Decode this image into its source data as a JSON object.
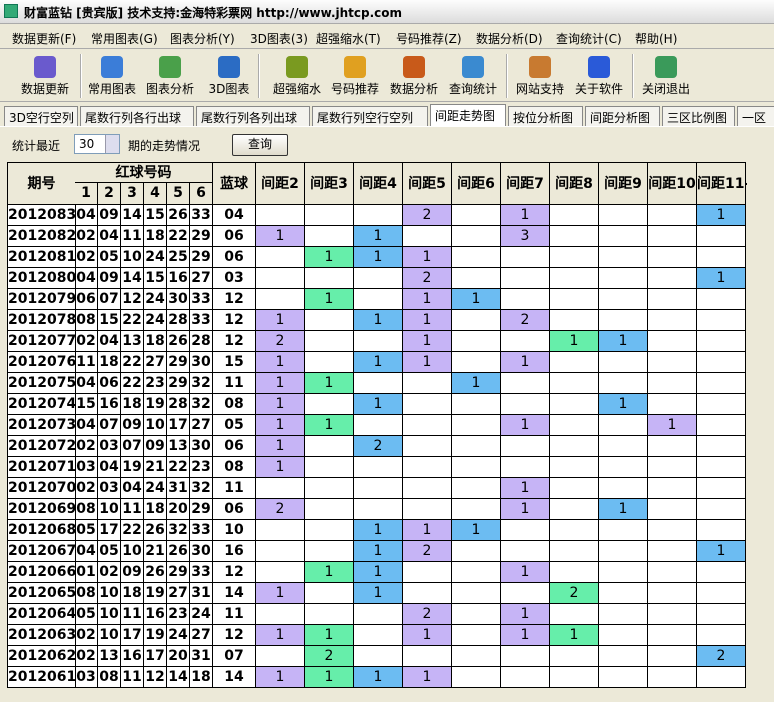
{
  "window": {
    "title": "财富蓝钻 [贵宾版] 技术支持:金海特彩票网 http://www.jhtcp.com"
  },
  "menu": [
    "数据更新(F)",
    "常用图表(G)",
    "图表分析(Y)",
    "3D图表(3)",
    "超强缩水(T)",
    "号码推荐(Z)",
    "数据分析(D)",
    "查询统计(C)",
    "帮助(H)"
  ],
  "toolbar": [
    "数据更新",
    "常用图表",
    "图表分析",
    "3D图表",
    "超强缩水",
    "号码推荐",
    "数据分析",
    "查询统计",
    "网站支持",
    "关于软件",
    "关闭退出"
  ],
  "tabs": [
    "3D空行空列",
    "尾数行列各行出球",
    "尾数行列各列出球",
    "尾数行列空行空列",
    "间距走势图",
    "按位分析图",
    "间距分析图",
    "三区比例图",
    "一区"
  ],
  "active_tab": 4,
  "filter": {
    "label_before": "统计最近",
    "count": 30,
    "label_after": "期的走势情况",
    "button": "查询"
  },
  "table": {
    "headers": {
      "issue": "期号",
      "red": "红球号码",
      "red_positions": [
        1,
        2,
        3,
        4,
        5,
        6
      ],
      "blue": "蓝球",
      "gaps": [
        "间距2",
        "间距3",
        "间距4",
        "间距5",
        "间距6",
        "间距7",
        "间距8",
        "间距9",
        "间距10",
        "间距11-"
      ]
    },
    "gap_colors": [
      "#c6b4f6",
      "#66eeaa",
      "#6cbcf2",
      "#c6b4f6",
      "#6cbcf2",
      "#c6b4f6",
      "#66eeaa",
      "#6cbcf2",
      "#c6b4f6",
      "#6cbcf2"
    ],
    "rows": [
      {
        "issue": "2012083",
        "red": [
          "04",
          "09",
          "14",
          "15",
          "26",
          "33"
        ],
        "blue": "04",
        "gaps": [
          null,
          null,
          null,
          2,
          null,
          1,
          null,
          null,
          null,
          1
        ]
      },
      {
        "issue": "2012082",
        "red": [
          "02",
          "04",
          "11",
          "18",
          "22",
          "29"
        ],
        "blue": "06",
        "gaps": [
          1,
          null,
          1,
          null,
          null,
          3,
          null,
          null,
          null,
          null
        ]
      },
      {
        "issue": "2012081",
        "red": [
          "02",
          "05",
          "10",
          "24",
          "25",
          "29"
        ],
        "blue": "06",
        "gaps": [
          null,
          1,
          1,
          1,
          null,
          null,
          null,
          null,
          null,
          null
        ]
      },
      {
        "issue": "2012080",
        "red": [
          "04",
          "09",
          "14",
          "15",
          "16",
          "27"
        ],
        "blue": "03",
        "gaps": [
          null,
          null,
          null,
          2,
          null,
          null,
          null,
          null,
          null,
          1
        ]
      },
      {
        "issue": "2012079",
        "red": [
          "06",
          "07",
          "12",
          "24",
          "30",
          "33"
        ],
        "blue": "12",
        "gaps": [
          null,
          1,
          null,
          1,
          1,
          null,
          null,
          null,
          null,
          null
        ]
      },
      {
        "issue": "2012078",
        "red": [
          "08",
          "15",
          "22",
          "24",
          "28",
          "33"
        ],
        "blue": "12",
        "gaps": [
          1,
          null,
          1,
          1,
          null,
          2,
          null,
          null,
          null,
          null
        ]
      },
      {
        "issue": "2012077",
        "red": [
          "02",
          "04",
          "13",
          "18",
          "26",
          "28"
        ],
        "blue": "12",
        "gaps": [
          2,
          null,
          null,
          1,
          null,
          null,
          1,
          1,
          null,
          null
        ]
      },
      {
        "issue": "2012076",
        "red": [
          "11",
          "18",
          "22",
          "27",
          "29",
          "30"
        ],
        "blue": "15",
        "gaps": [
          1,
          null,
          1,
          1,
          null,
          1,
          null,
          null,
          null,
          null
        ]
      },
      {
        "issue": "2012075",
        "red": [
          "04",
          "06",
          "22",
          "23",
          "29",
          "32"
        ],
        "blue": "11",
        "gaps": [
          1,
          1,
          null,
          null,
          1,
          null,
          null,
          null,
          null,
          null
        ]
      },
      {
        "issue": "2012074",
        "red": [
          "15",
          "16",
          "18",
          "19",
          "28",
          "32"
        ],
        "blue": "08",
        "gaps": [
          1,
          null,
          1,
          null,
          null,
          null,
          null,
          1,
          null,
          null
        ]
      },
      {
        "issue": "2012073",
        "red": [
          "04",
          "07",
          "09",
          "10",
          "17",
          "27"
        ],
        "blue": "05",
        "gaps": [
          1,
          1,
          null,
          null,
          null,
          1,
          null,
          null,
          1,
          null
        ]
      },
      {
        "issue": "2012072",
        "red": [
          "02",
          "03",
          "07",
          "09",
          "13",
          "30"
        ],
        "blue": "06",
        "gaps": [
          1,
          null,
          2,
          null,
          null,
          null,
          null,
          null,
          null,
          null
        ]
      },
      {
        "issue": "2012071",
        "red": [
          "03",
          "04",
          "19",
          "21",
          "22",
          "23"
        ],
        "blue": "08",
        "gaps": [
          1,
          null,
          null,
          null,
          null,
          null,
          null,
          null,
          null,
          null
        ]
      },
      {
        "issue": "2012070",
        "red": [
          "02",
          "03",
          "04",
          "24",
          "31",
          "32"
        ],
        "blue": "11",
        "gaps": [
          null,
          null,
          null,
          null,
          null,
          1,
          null,
          null,
          null,
          null
        ]
      },
      {
        "issue": "2012069",
        "red": [
          "08",
          "10",
          "11",
          "18",
          "20",
          "29"
        ],
        "blue": "06",
        "gaps": [
          2,
          null,
          null,
          null,
          null,
          1,
          null,
          1,
          null,
          null
        ]
      },
      {
        "issue": "2012068",
        "red": [
          "05",
          "17",
          "22",
          "26",
          "32",
          "33"
        ],
        "blue": "10",
        "gaps": [
          null,
          null,
          1,
          1,
          1,
          null,
          null,
          null,
          null,
          null
        ]
      },
      {
        "issue": "2012067",
        "red": [
          "04",
          "05",
          "10",
          "21",
          "26",
          "30"
        ],
        "blue": "16",
        "gaps": [
          null,
          null,
          1,
          2,
          null,
          null,
          null,
          null,
          null,
          1
        ]
      },
      {
        "issue": "2012066",
        "red": [
          "01",
          "02",
          "09",
          "26",
          "29",
          "33"
        ],
        "blue": "12",
        "gaps": [
          null,
          1,
          1,
          null,
          null,
          1,
          null,
          null,
          null,
          null
        ]
      },
      {
        "issue": "2012065",
        "red": [
          "08",
          "10",
          "18",
          "19",
          "27",
          "31"
        ],
        "blue": "14",
        "gaps": [
          1,
          null,
          1,
          null,
          null,
          null,
          2,
          null,
          null,
          null
        ]
      },
      {
        "issue": "2012064",
        "red": [
          "05",
          "10",
          "11",
          "16",
          "23",
          "24"
        ],
        "blue": "11",
        "gaps": [
          null,
          null,
          null,
          2,
          null,
          1,
          null,
          null,
          null,
          null
        ]
      },
      {
        "issue": "2012063",
        "red": [
          "02",
          "10",
          "17",
          "19",
          "24",
          "27"
        ],
        "blue": "12",
        "gaps": [
          1,
          1,
          null,
          1,
          null,
          1,
          1,
          null,
          null,
          null
        ]
      },
      {
        "issue": "2012062",
        "red": [
          "02",
          "13",
          "16",
          "17",
          "20",
          "31"
        ],
        "blue": "07",
        "gaps": [
          null,
          2,
          null,
          null,
          null,
          null,
          null,
          null,
          null,
          2
        ]
      },
      {
        "issue": "2012061",
        "red": [
          "03",
          "08",
          "11",
          "12",
          "14",
          "18"
        ],
        "blue": "14",
        "gaps": [
          1,
          1,
          1,
          1,
          null,
          null,
          null,
          null,
          null,
          null
        ]
      }
    ]
  }
}
